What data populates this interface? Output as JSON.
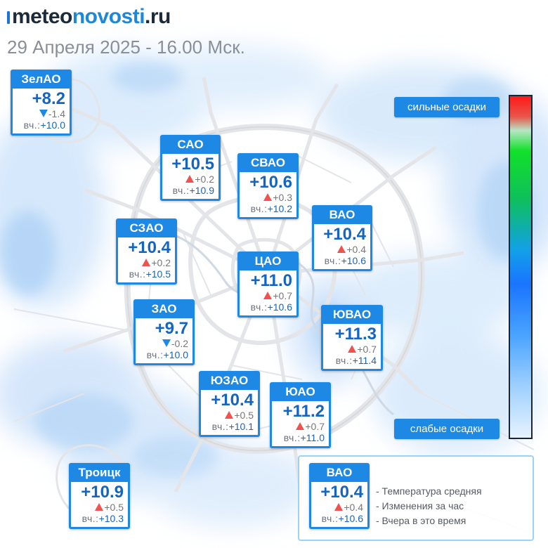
{
  "header": {
    "logo_part1": "meteo",
    "logo_part2": "novosti",
    "logo_part3": ".ru",
    "datetime": "29 Апреля 2025 - 16.00 Мск."
  },
  "scale": {
    "top_label": "сильные осадки",
    "bottom_label": "слабые осадки"
  },
  "districts": [
    {
      "name": "ЗелАО",
      "temp": "+8.2",
      "trend": "down",
      "change": "-1.4",
      "yesterday_label": "вч.:",
      "yesterday": "+10.0"
    },
    {
      "name": "САО",
      "temp": "+10.5",
      "trend": "up",
      "change": "+0.2",
      "yesterday_label": "вч.:",
      "yesterday": "+10.9"
    },
    {
      "name": "СВАО",
      "temp": "+10.6",
      "trend": "up",
      "change": "+0.3",
      "yesterday_label": "вч.:",
      "yesterday": "+10.2"
    },
    {
      "name": "ВАО",
      "temp": "+10.4",
      "trend": "up",
      "change": "+0.4",
      "yesterday_label": "вч.:",
      "yesterday": "+10.6"
    },
    {
      "name": "СЗАО",
      "temp": "+10.4",
      "trend": "up",
      "change": "+0.2",
      "yesterday_label": "вч.:",
      "yesterday": "+10.5"
    },
    {
      "name": "ЦАО",
      "temp": "+11.0",
      "trend": "up",
      "change": "+0.7",
      "yesterday_label": "вч.:",
      "yesterday": "+10.6"
    },
    {
      "name": "ЗАО",
      "temp": "+9.7",
      "trend": "down",
      "change": "-0.2",
      "yesterday_label": "вч.:",
      "yesterday": "+10.0"
    },
    {
      "name": "ЮВАО",
      "temp": "+11.3",
      "trend": "up",
      "change": "+0.7",
      "yesterday_label": "вч.:",
      "yesterday": "+11.4"
    },
    {
      "name": "ЮЗАО",
      "temp": "+10.4",
      "trend": "up",
      "change": "+0.5",
      "yesterday_label": "вч.:",
      "yesterday": "+10.1"
    },
    {
      "name": "ЮАО",
      "temp": "+11.2",
      "trend": "up",
      "change": "+0.7",
      "yesterday_label": "вч.:",
      "yesterday": "+11.0"
    },
    {
      "name": "Троицк",
      "temp": "+10.9",
      "trend": "up",
      "change": "+0.5",
      "yesterday_label": "вч.:",
      "yesterday": "+10.3"
    }
  ],
  "legend": {
    "example": {
      "name": "ВАО",
      "temp": "+10.4",
      "trend": "up",
      "change": "+0.4",
      "yesterday_label": "вч.:",
      "yesterday": "+10.6"
    },
    "line1": "- Температура средняя",
    "line2": "- Изменения за час",
    "line3": "- Вчера в это время"
  },
  "colors": {
    "card_blue": "#1e88e5",
    "temp_blue": "#1565c0",
    "rise_red": "#ef5350",
    "fall_blue": "#1e88e5"
  }
}
